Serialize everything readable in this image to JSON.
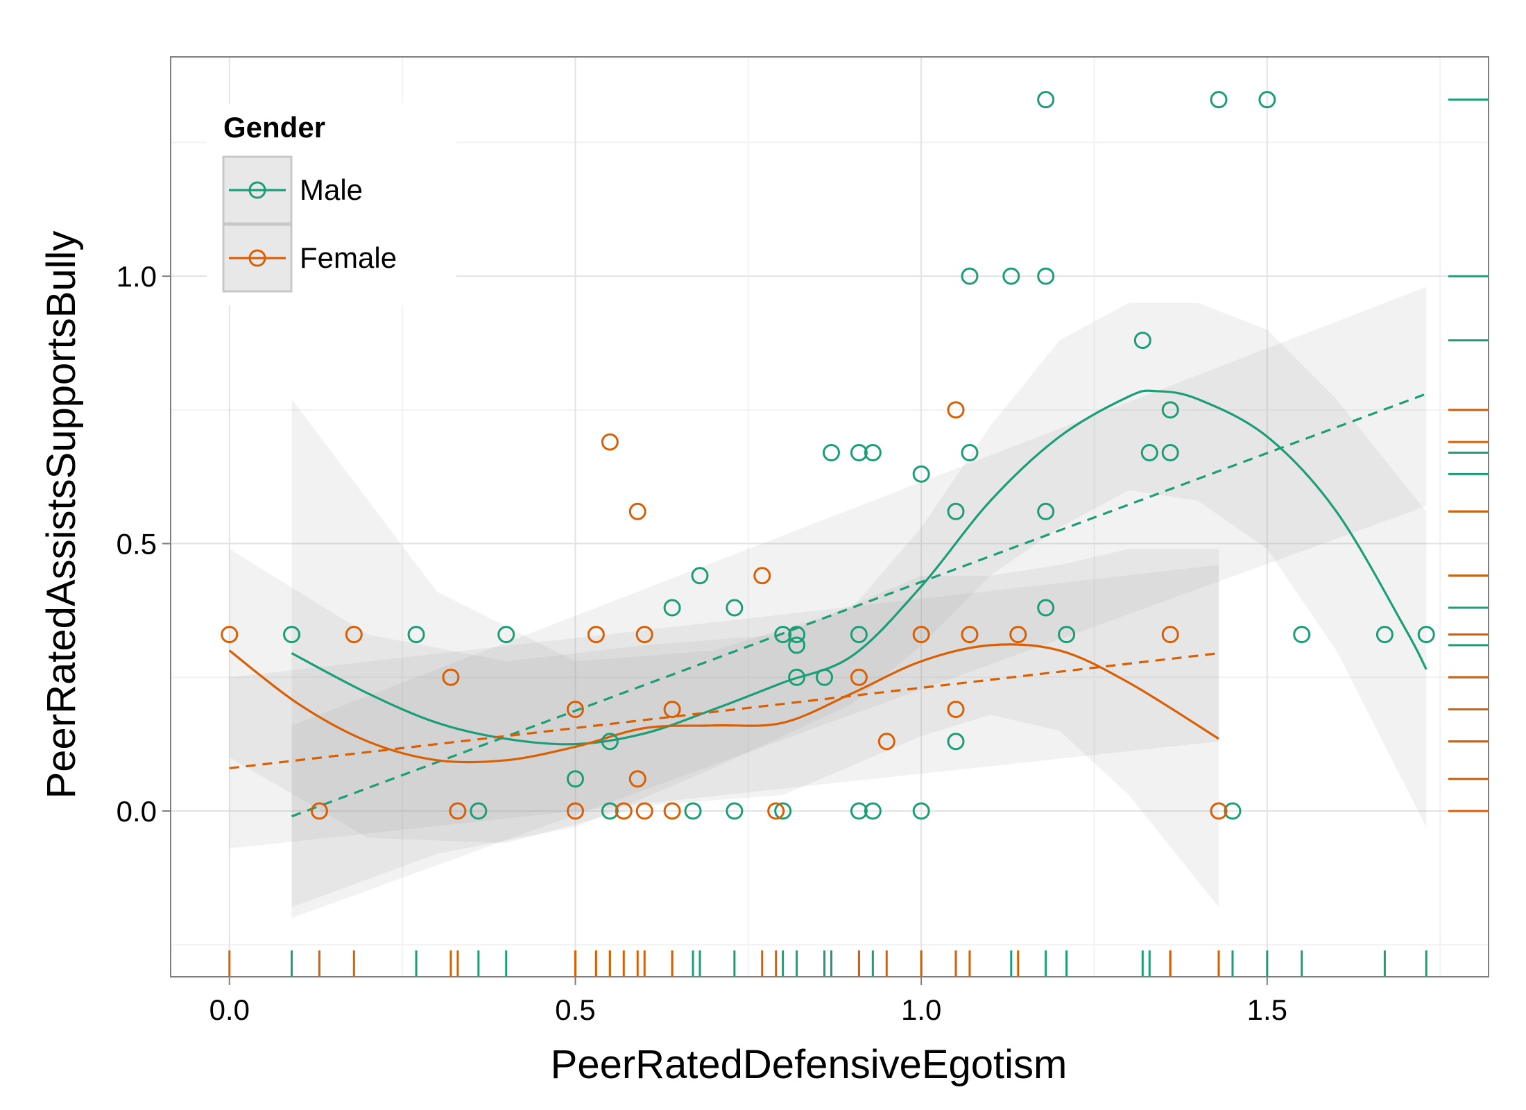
{
  "chart_data": {
    "type": "scatter",
    "xlabel": "PeerRatedDefensiveEgotism",
    "ylabel": "PeerRatedAssistsSupportsBully",
    "xlim": [
      -0.085,
      1.82
    ],
    "ylim": [
      -0.31,
      1.41
    ],
    "x_ticks": [
      0.0,
      0.5,
      1.0,
      1.5
    ],
    "x_tick_labels": [
      "0.0",
      "0.5",
      "1.0",
      "1.5"
    ],
    "y_ticks": [
      0.0,
      0.5,
      1.0
    ],
    "y_tick_labels": [
      "0.0",
      "0.5",
      "1.0"
    ],
    "grid": true,
    "legend": {
      "title": "Gender",
      "placement": "top-left"
    },
    "series": [
      {
        "name": "Male",
        "color": "#1b9e77",
        "points": [
          [
            0.09,
            0.33
          ],
          [
            0.27,
            0.33
          ],
          [
            0.36,
            0.0
          ],
          [
            0.4,
            0.33
          ],
          [
            0.5,
            0.06
          ],
          [
            0.55,
            0.13
          ],
          [
            0.55,
            0.0
          ],
          [
            0.64,
            0.38
          ],
          [
            0.67,
            0.0
          ],
          [
            0.68,
            0.44
          ],
          [
            0.73,
            0.38
          ],
          [
            0.73,
            0.0
          ],
          [
            0.8,
            0.33
          ],
          [
            0.8,
            0.0
          ],
          [
            0.82,
            0.33
          ],
          [
            0.82,
            0.31
          ],
          [
            0.82,
            0.25
          ],
          [
            0.86,
            0.25
          ],
          [
            0.87,
            0.67
          ],
          [
            0.91,
            0.67
          ],
          [
            0.91,
            0.33
          ],
          [
            0.91,
            0.0
          ],
          [
            0.93,
            0.67
          ],
          [
            0.93,
            0.0
          ],
          [
            1.0,
            0.63
          ],
          [
            1.0,
            0.0
          ],
          [
            1.05,
            0.56
          ],
          [
            1.05,
            0.13
          ],
          [
            1.07,
            1.0
          ],
          [
            1.07,
            0.67
          ],
          [
            1.13,
            1.0
          ],
          [
            1.18,
            1.33
          ],
          [
            1.18,
            1.0
          ],
          [
            1.18,
            0.56
          ],
          [
            1.18,
            0.38
          ],
          [
            1.21,
            0.33
          ],
          [
            1.32,
            0.88
          ],
          [
            1.33,
            0.67
          ],
          [
            1.36,
            0.75
          ],
          [
            1.36,
            0.67
          ],
          [
            1.43,
            1.33
          ],
          [
            1.45,
            0.0
          ],
          [
            1.5,
            1.33
          ],
          [
            1.55,
            0.33
          ],
          [
            1.67,
            0.33
          ],
          [
            1.73,
            0.33
          ]
        ],
        "lm_line": [
          [
            0.09,
            -0.01
          ],
          [
            1.73,
            0.78
          ]
        ],
        "smooth": [
          [
            0.09,
            0.295
          ],
          [
            0.2,
            0.22
          ],
          [
            0.3,
            0.165
          ],
          [
            0.4,
            0.135
          ],
          [
            0.5,
            0.125
          ],
          [
            0.6,
            0.145
          ],
          [
            0.7,
            0.19
          ],
          [
            0.8,
            0.24
          ],
          [
            0.9,
            0.29
          ],
          [
            1.0,
            0.42
          ],
          [
            1.1,
            0.58
          ],
          [
            1.2,
            0.7
          ],
          [
            1.3,
            0.775
          ],
          [
            1.34,
            0.785
          ],
          [
            1.4,
            0.77
          ],
          [
            1.5,
            0.7
          ],
          [
            1.6,
            0.56
          ],
          [
            1.7,
            0.34
          ],
          [
            1.73,
            0.265
          ]
        ],
        "lm_band_upper": [
          [
            0.09,
            0.16
          ],
          [
            1.73,
            0.98
          ]
        ],
        "lm_band_lower": [
          [
            0.09,
            -0.2
          ],
          [
            1.73,
            0.57
          ]
        ],
        "smooth_band_upper": [
          [
            0.09,
            0.77
          ],
          [
            0.3,
            0.41
          ],
          [
            0.5,
            0.28
          ],
          [
            0.7,
            0.3
          ],
          [
            0.9,
            0.38
          ],
          [
            1.0,
            0.53
          ],
          [
            1.1,
            0.72
          ],
          [
            1.2,
            0.88
          ],
          [
            1.3,
            0.95
          ],
          [
            1.4,
            0.95
          ],
          [
            1.5,
            0.9
          ],
          [
            1.6,
            0.77
          ],
          [
            1.73,
            0.56
          ]
        ],
        "smooth_band_lower": [
          [
            0.09,
            -0.18
          ],
          [
            0.3,
            -0.08
          ],
          [
            0.5,
            -0.03
          ],
          [
            0.7,
            0.08
          ],
          [
            0.9,
            0.2
          ],
          [
            1.0,
            0.31
          ],
          [
            1.1,
            0.44
          ],
          [
            1.2,
            0.53
          ],
          [
            1.3,
            0.6
          ],
          [
            1.4,
            0.58
          ],
          [
            1.5,
            0.49
          ],
          [
            1.6,
            0.3
          ],
          [
            1.73,
            -0.03
          ]
        ]
      },
      {
        "name": "Female",
        "color": "#d95f02",
        "points": [
          [
            0.0,
            0.33
          ],
          [
            0.13,
            0.0
          ],
          [
            0.18,
            0.33
          ],
          [
            0.32,
            0.25
          ],
          [
            0.33,
            0.0
          ],
          [
            0.5,
            0.19
          ],
          [
            0.5,
            0.0
          ],
          [
            0.53,
            0.33
          ],
          [
            0.55,
            0.69
          ],
          [
            0.57,
            0.0
          ],
          [
            0.59,
            0.56
          ],
          [
            0.59,
            0.06
          ],
          [
            0.6,
            0.33
          ],
          [
            0.6,
            0.0
          ],
          [
            0.64,
            0.19
          ],
          [
            0.64,
            0.0
          ],
          [
            0.77,
            0.44
          ],
          [
            0.79,
            0.0
          ],
          [
            0.91,
            0.25
          ],
          [
            0.95,
            0.13
          ],
          [
            1.0,
            0.33
          ],
          [
            1.05,
            0.75
          ],
          [
            1.05,
            0.19
          ],
          [
            1.07,
            0.33
          ],
          [
            1.14,
            0.33
          ],
          [
            1.36,
            0.33
          ],
          [
            1.43,
            0.0
          ]
        ],
        "lm_line": [
          [
            0.0,
            0.08
          ],
          [
            1.43,
            0.295
          ]
        ],
        "smooth": [
          [
            0.0,
            0.3
          ],
          [
            0.1,
            0.2
          ],
          [
            0.2,
            0.13
          ],
          [
            0.3,
            0.095
          ],
          [
            0.4,
            0.095
          ],
          [
            0.5,
            0.12
          ],
          [
            0.6,
            0.155
          ],
          [
            0.7,
            0.16
          ],
          [
            0.8,
            0.165
          ],
          [
            0.9,
            0.22
          ],
          [
            1.0,
            0.28
          ],
          [
            1.1,
            0.31
          ],
          [
            1.2,
            0.3
          ],
          [
            1.3,
            0.24
          ],
          [
            1.43,
            0.135
          ]
        ],
        "lm_band_upper": [
          [
            0.0,
            0.25
          ],
          [
            1.43,
            0.46
          ]
        ],
        "lm_band_lower": [
          [
            0.0,
            -0.07
          ],
          [
            1.43,
            0.13
          ]
        ],
        "smooth_band_upper": [
          [
            0.0,
            0.49
          ],
          [
            0.2,
            0.33
          ],
          [
            0.4,
            0.28
          ],
          [
            0.6,
            0.31
          ],
          [
            0.8,
            0.33
          ],
          [
            1.0,
            0.44
          ],
          [
            1.1,
            0.44
          ],
          [
            1.2,
            0.46
          ],
          [
            1.3,
            0.49
          ],
          [
            1.43,
            0.49
          ]
        ],
        "smooth_band_lower": [
          [
            0.0,
            0.1
          ],
          [
            0.2,
            -0.05
          ],
          [
            0.4,
            -0.06
          ],
          [
            0.6,
            0.01
          ],
          [
            0.8,
            0.03
          ],
          [
            1.0,
            0.14
          ],
          [
            1.1,
            0.18
          ],
          [
            1.2,
            0.15
          ],
          [
            1.3,
            0.03
          ],
          [
            1.43,
            -0.18
          ]
        ]
      }
    ]
  }
}
